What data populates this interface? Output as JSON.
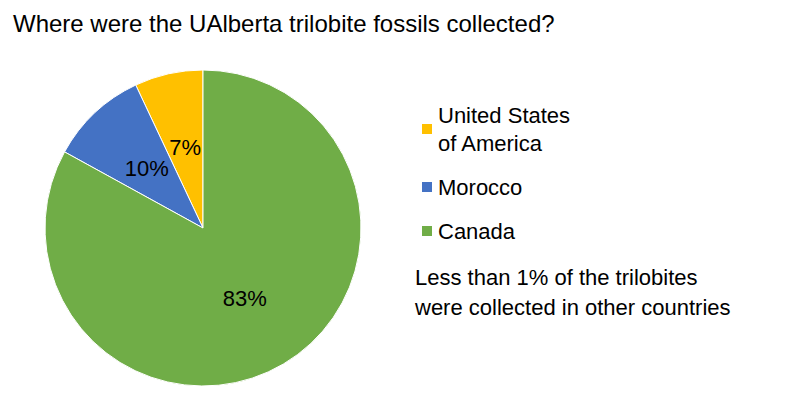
{
  "chart_data": {
    "type": "pie",
    "title": "Where were the UAlberta trilobite fossils collected?",
    "categories": [
      "United States of America",
      "Morocco",
      "Canada"
    ],
    "values": [
      7,
      10,
      83
    ],
    "value_labels": [
      "7%",
      "10%",
      "83%"
    ],
    "colors": [
      "#ffc000",
      "#4472c4",
      "#70ad47"
    ],
    "data_labels": true,
    "legend": "right",
    "annotation": [
      "Less than 1% of the trilobites",
      "were collected in other countries"
    ]
  }
}
